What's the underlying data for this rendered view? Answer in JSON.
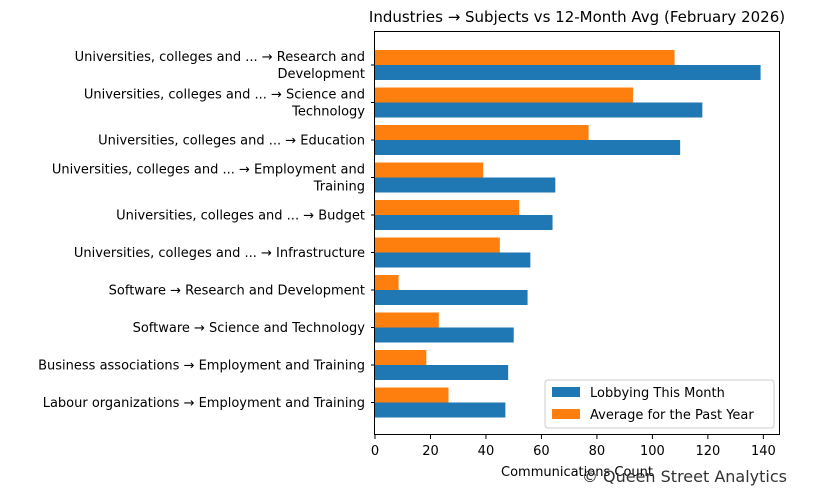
{
  "chart_data": {
    "type": "bar",
    "orientation": "horizontal",
    "title": "Industries → Subjects vs 12-Month Avg (February 2026)",
    "xlabel": "Communications Count",
    "ylabel": "",
    "xlim": [
      0,
      146
    ],
    "xticks": [
      "0",
      "20",
      "40",
      "60",
      "80",
      "100",
      "120",
      "140"
    ],
    "grid": false,
    "legend_position": "bottom-right",
    "categories": [
      [
        "Universities, colleges and ... → Research and",
        "Development"
      ],
      [
        "Universities, colleges and ... → Science and",
        "Technology"
      ],
      [
        "Universities, colleges and ... → Education"
      ],
      [
        "Universities, colleges and ... → Employment and",
        "Training"
      ],
      [
        "Universities, colleges and ... → Budget"
      ],
      [
        "Universities, colleges and ... → Infrastructure"
      ],
      [
        "Software → Research and Development"
      ],
      [
        "Software → Science and Technology"
      ],
      [
        "Business associations → Employment and Training"
      ],
      [
        "Labour organizations → Employment and Training"
      ]
    ],
    "series": [
      {
        "name": "Lobbying This Month",
        "color": "#1f77b4",
        "values": [
          139,
          118,
          110,
          65,
          64,
          56,
          55,
          50,
          48,
          47
        ]
      },
      {
        "name": "Average for the Past Year",
        "color": "#ff7f0e",
        "values": [
          108,
          93,
          77,
          39,
          52,
          45,
          8.5,
          23,
          18.5,
          26.5
        ]
      }
    ]
  },
  "watermark": "© Queen Street Analytics"
}
